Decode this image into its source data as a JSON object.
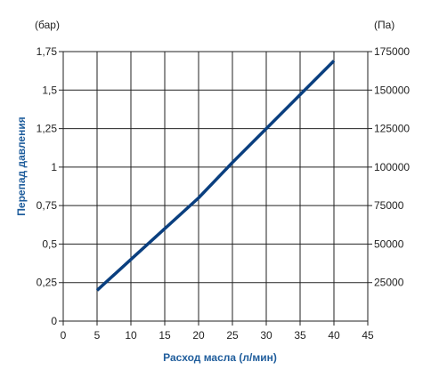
{
  "chart_data": {
    "type": "line",
    "title": "",
    "xlabel": "Расход масла (л/мин)",
    "ylabel": "Перепад давления",
    "y_unit_left": "(бар)",
    "y_unit_right": "(Па)",
    "x_ticks": [
      "0",
      "5",
      "10",
      "15",
      "20",
      "25",
      "30",
      "35",
      "40",
      "45"
    ],
    "y_ticks_left": [
      "0",
      "0,25",
      "0,5",
      "0,75",
      "1",
      "1,25",
      "1,5",
      "1,75"
    ],
    "y_ticks_right": [
      "25000",
      "50000",
      "75000",
      "100000",
      "125000",
      "150000",
      "175000"
    ],
    "xlim": [
      0,
      45
    ],
    "ylim": [
      0,
      1.75
    ],
    "y2lim": [
      0,
      175000
    ],
    "grid": true,
    "series": [
      {
        "x": [
          5,
          10,
          15,
          20,
          25,
          30,
          35,
          40
        ],
        "y": [
          0.2,
          0.4,
          0.6,
          0.8,
          1.03,
          1.25,
          1.47,
          1.69
        ]
      }
    ]
  },
  "colors": {
    "line": "#0a3f7f",
    "axis_title": "#1f5d9c",
    "grid": "#222222"
  }
}
